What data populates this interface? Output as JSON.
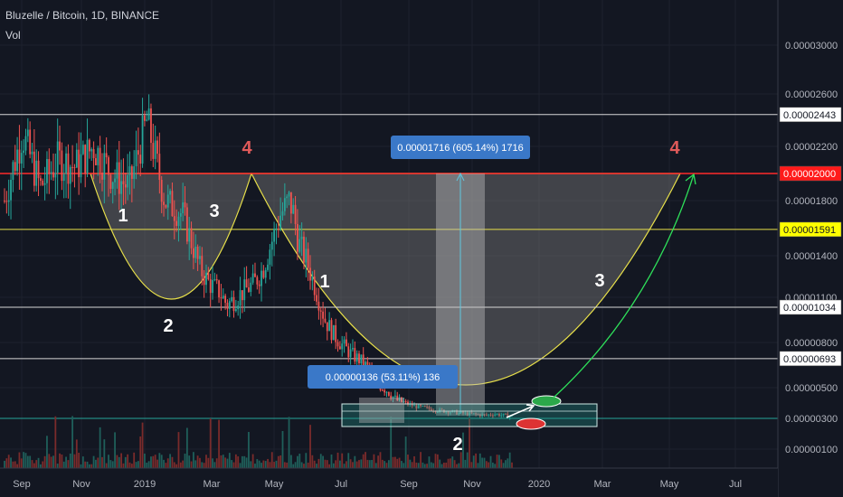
{
  "header": {
    "title": "Bluzelle / Bitcoin, 1D, BINANCE",
    "volume_label": "Vol"
  },
  "colors": {
    "background": "#131722",
    "up": "#26a69a",
    "down": "#ef5350",
    "cup_fill": "#7a7a7a",
    "cup_line": "#e8e04a",
    "resistance": "#ff2a2a",
    "level_591": "#e8e04a",
    "measure_box": "#3a78c8",
    "annotation_red": "#e05a5a"
  },
  "chart_data": {
    "type": "candlestick",
    "symbol": "Bluzelle / Bitcoin",
    "interval": "1D",
    "exchange": "BINANCE",
    "y_axis": {
      "ticks": [
        "0.00003000",
        "0.00002600",
        "0.00002200",
        "0.00001800",
        "0.00001400",
        "0.00001100",
        "0.00000800",
        "0.00000500",
        "0.00000300",
        "0.00000100"
      ],
      "tick_values": [
        3000,
        2600,
        2200,
        1800,
        1400,
        1100,
        800,
        500,
        300,
        100
      ],
      "scale": "log",
      "unit_note": "values in satoshis x 1e-8"
    },
    "x_axis": {
      "ticks": [
        "Sep",
        "Nov",
        "2019",
        "Mar",
        "May",
        "Jul",
        "Sep",
        "Nov",
        "2020",
        "Mar",
        "May",
        "Jul"
      ]
    },
    "horizontal_levels": [
      {
        "label": "0.00002443",
        "value": 2443,
        "line": "white",
        "label_style": "white"
      },
      {
        "label": "0.00002000",
        "value": 2000,
        "line": "red",
        "label_style": "red"
      },
      {
        "label": "0.00001591",
        "value": 1591,
        "line": "yellow",
        "label_style": "yellow"
      },
      {
        "label": "0.00001034",
        "value": 1034,
        "line": "white",
        "label_style": "white"
      },
      {
        "label": "0.00000693",
        "value": 693,
        "line": "white",
        "label_style": "white"
      },
      {
        "label": "",
        "value": 300,
        "line": "green",
        "label_style": "none"
      }
    ],
    "measurements": [
      {
        "text": "0.00001716 (605.14%) 1716"
      },
      {
        "text": "0.00000136 (53.11%) 136"
      }
    ],
    "pattern_labels": [
      {
        "text": "4",
        "color": "red"
      },
      {
        "text": "1",
        "color": "white"
      },
      {
        "text": "3",
        "color": "white"
      },
      {
        "text": "2",
        "color": "white"
      },
      {
        "text": "4",
        "color": "red"
      },
      {
        "text": "1",
        "color": "white"
      },
      {
        "text": "3",
        "color": "white"
      },
      {
        "text": "2",
        "color": "white"
      }
    ],
    "price_path": [
      [
        0,
        1800
      ],
      [
        4,
        2300
      ],
      [
        8,
        1900
      ],
      [
        12,
        2100
      ],
      [
        16,
        2050
      ],
      [
        20,
        2200
      ],
      [
        24,
        2000
      ],
      [
        28,
        1900
      ],
      [
        32,
        2400
      ],
      [
        36,
        1800
      ],
      [
        40,
        1700
      ],
      [
        42,
        1500
      ],
      [
        44,
        1300
      ],
      [
        46,
        1200
      ],
      [
        48,
        1150
      ],
      [
        50,
        1050
      ],
      [
        52,
        1100
      ],
      [
        54,
        1150
      ],
      [
        56,
        1200
      ],
      [
        58,
        1300
      ],
      [
        60,
        1500
      ],
      [
        62,
        1700
      ],
      [
        64,
        1800
      ],
      [
        65,
        1700
      ],
      [
        66,
        1500
      ],
      [
        68,
        1350
      ],
      [
        70,
        1150
      ],
      [
        72,
        950
      ],
      [
        74,
        850
      ],
      [
        76,
        780
      ],
      [
        78,
        720
      ],
      [
        80,
        680
      ],
      [
        82,
        620
      ],
      [
        84,
        520
      ],
      [
        86,
        480
      ],
      [
        88,
        420
      ],
      [
        90,
        400
      ],
      [
        92,
        380
      ],
      [
        94,
        370
      ],
      [
        96,
        360
      ],
      [
        98,
        350
      ],
      [
        100,
        345
      ],
      [
        102,
        335
      ],
      [
        104,
        330
      ],
      [
        106,
        325
      ],
      [
        108,
        320
      ],
      [
        110,
        330
      ],
      [
        112,
        320
      ],
      [
        114,
        315
      ]
    ]
  }
}
